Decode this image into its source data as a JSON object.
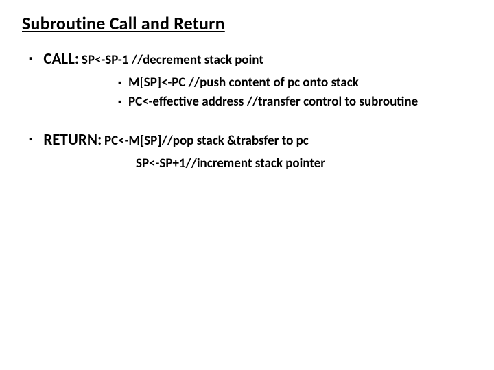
{
  "title": "Subroutine Call and Return",
  "call": {
    "label": "CALL:",
    "line1": "SP<-SP-1 //decrement stack point",
    "sub": [
      "M[SP]<-PC //push content of pc onto stack",
      "PC<-effective address //transfer control to subroutine"
    ]
  },
  "ret": {
    "label": "RETURN:",
    "line1": "PC<-M[SP]//pop stack &trabsfer to pc",
    "line2": "SP<-SP+1//increment  stack pointer"
  },
  "colors": {
    "background": "#ffffff",
    "text": "#000000"
  },
  "bullet_char": "▪"
}
